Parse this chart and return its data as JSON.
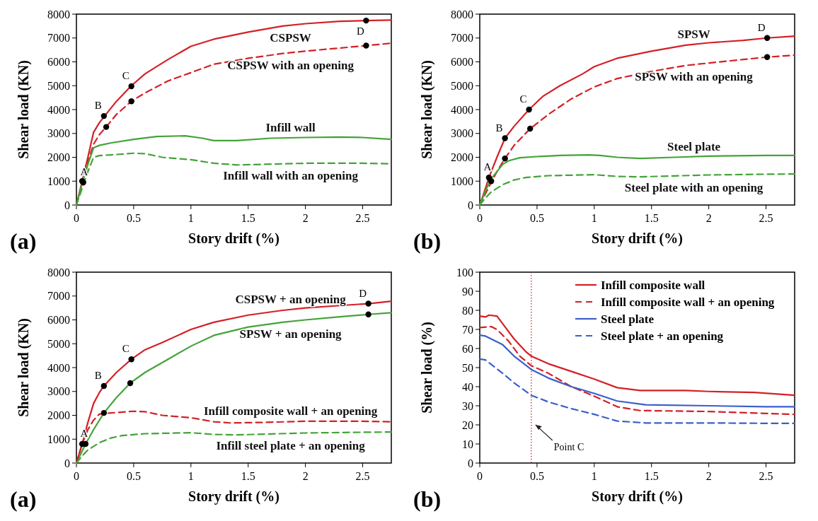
{
  "chart_data": [
    {
      "type": "line",
      "xlabel": "Story drift (%)",
      "ylabel": "Shear load (KN)",
      "xlim": [
        0,
        2.75
      ],
      "ylim": [
        0,
        8000
      ],
      "xticks": [
        0,
        0.5,
        1,
        1.5,
        2,
        2.5
      ],
      "yticks": [
        0,
        1000,
        2000,
        3000,
        4000,
        5000,
        6000,
        7000,
        8000
      ],
      "annotations": [
        "(a)",
        {
          "text": "A",
          "x": 0.06,
          "y": 950
        },
        {
          "text": "B",
          "x": 0.24,
          "y": 3730
        },
        {
          "text": "C",
          "x": 0.48,
          "y": 4980
        },
        {
          "text": "D",
          "x": 2.53,
          "y": 7730
        }
      ],
      "series": [
        {
          "name": "CSPSW",
          "color": "#d42027",
          "line_style": "solid",
          "x": [
            0,
            0.05,
            0.1,
            0.15,
            0.2,
            0.25,
            0.35,
            0.48,
            0.6,
            0.8,
            1.0,
            1.2,
            1.5,
            1.8,
            2.0,
            2.3,
            2.53,
            2.75
          ],
          "values": [
            0,
            1000,
            2000,
            3050,
            3450,
            3750,
            4350,
            5000,
            5500,
            6100,
            6650,
            6950,
            7250,
            7500,
            7600,
            7700,
            7730,
            7750
          ]
        },
        {
          "name": "CSPSW with an opening",
          "color": "#d42027",
          "line_style": "dashed",
          "x": [
            0,
            0.05,
            0.1,
            0.15,
            0.2,
            0.26,
            0.35,
            0.48,
            0.6,
            0.8,
            1.0,
            1.2,
            1.5,
            1.8,
            2.0,
            2.3,
            2.53,
            2.75
          ],
          "values": [
            0,
            900,
            1800,
            2550,
            2950,
            3270,
            3800,
            4350,
            4700,
            5200,
            5550,
            5900,
            6150,
            6350,
            6450,
            6580,
            6680,
            6780
          ]
        },
        {
          "name": "Infill wall",
          "color": "#44a33a",
          "line_style": "solid",
          "x": [
            0,
            0.05,
            0.1,
            0.15,
            0.2,
            0.3,
            0.5,
            0.7,
            0.95,
            1.1,
            1.2,
            1.4,
            1.7,
            2.0,
            2.3,
            2.5,
            2.75
          ],
          "values": [
            0,
            900,
            1700,
            2400,
            2500,
            2600,
            2750,
            2870,
            2900,
            2800,
            2700,
            2700,
            2800,
            2830,
            2850,
            2830,
            2750
          ]
        },
        {
          "name": "Infill wall with an opening",
          "color": "#44a33a",
          "line_style": "dashed",
          "x": [
            0,
            0.05,
            0.1,
            0.15,
            0.2,
            0.3,
            0.5,
            0.6,
            0.75,
            1.0,
            1.2,
            1.4,
            1.6,
            2.0,
            2.5,
            2.75
          ],
          "values": [
            0,
            700,
            1400,
            2000,
            2070,
            2100,
            2170,
            2150,
            2000,
            1900,
            1750,
            1680,
            1700,
            1750,
            1750,
            1730
          ]
        },
        {
          "type": "scatter",
          "color": "#000000",
          "marker": "circle",
          "x": [
            0.05,
            0.06,
            0.24,
            0.26,
            0.48,
            0.48,
            2.53,
            2.53
          ],
          "values": [
            1000,
            950,
            3730,
            3270,
            4980,
            4350,
            7730,
            6680
          ]
        }
      ]
    },
    {
      "type": "line",
      "xlabel": "Story drift (%)",
      "ylabel": "Shear load (KN)",
      "xlim": [
        0,
        2.75
      ],
      "ylim": [
        0,
        8000
      ],
      "xticks": [
        0,
        0.5,
        1,
        1.5,
        2,
        2.5
      ],
      "yticks": [
        0,
        1000,
        2000,
        3000,
        4000,
        5000,
        6000,
        7000,
        8000
      ],
      "annotations": [
        "(b)",
        {
          "text": "A",
          "x": 0.08,
          "y": 1150
        },
        {
          "text": "B",
          "x": 0.22,
          "y": 2800
        },
        {
          "text": "C",
          "x": 0.43,
          "y": 4000
        },
        {
          "text": "D",
          "x": 2.51,
          "y": 7000
        }
      ],
      "series": [
        {
          "name": "SPSW",
          "color": "#d42027",
          "line_style": "solid",
          "x": [
            0,
            0.05,
            0.08,
            0.15,
            0.22,
            0.3,
            0.43,
            0.55,
            0.7,
            0.9,
            1.0,
            1.2,
            1.5,
            1.8,
            2.0,
            2.3,
            2.51,
            2.75
          ],
          "values": [
            0,
            700,
            1150,
            2000,
            2800,
            3300,
            4000,
            4550,
            5000,
            5500,
            5800,
            6150,
            6450,
            6700,
            6800,
            6900,
            7000,
            7080
          ]
        },
        {
          "name": "SPSW with an opening",
          "color": "#d42027",
          "line_style": "dashed",
          "x": [
            0,
            0.1,
            0.15,
            0.22,
            0.3,
            0.44,
            0.6,
            0.8,
            1.0,
            1.2,
            1.5,
            1.8,
            2.0,
            2.3,
            2.51,
            2.75
          ],
          "values": [
            0,
            950,
            1400,
            1950,
            2500,
            3200,
            3800,
            4450,
            4950,
            5300,
            5600,
            5850,
            5950,
            6100,
            6200,
            6280
          ]
        },
        {
          "name": "Steel plate",
          "color": "#44a33a",
          "line_style": "solid",
          "x": [
            0,
            0.05,
            0.1,
            0.2,
            0.25,
            0.35,
            0.5,
            0.7,
            0.95,
            1.05,
            1.2,
            1.4,
            1.7,
            2.0,
            2.5,
            2.75
          ],
          "values": [
            0,
            600,
            1100,
            1700,
            1850,
            1980,
            2030,
            2080,
            2100,
            2080,
            2000,
            1950,
            2000,
            2050,
            2080,
            2080
          ]
        },
        {
          "name": "Steel plate with an opening",
          "color": "#44a33a",
          "line_style": "dashed",
          "x": [
            0,
            0.05,
            0.1,
            0.2,
            0.3,
            0.4,
            0.6,
            1.0,
            1.2,
            1.4,
            1.7,
            2.0,
            2.5,
            2.75
          ],
          "values": [
            0,
            300,
            550,
            850,
            1050,
            1150,
            1230,
            1270,
            1200,
            1180,
            1220,
            1260,
            1290,
            1300
          ]
        },
        {
          "type": "scatter",
          "color": "#000000",
          "marker": "circle",
          "x": [
            0.08,
            0.1,
            0.22,
            0.22,
            0.43,
            0.44,
            2.51,
            2.51
          ],
          "values": [
            1150,
            1000,
            2800,
            1950,
            4000,
            3200,
            7000,
            6200
          ]
        }
      ]
    },
    {
      "type": "line",
      "xlabel": "Story drift (%)",
      "ylabel": "Shear load (KN)",
      "xlim": [
        0,
        2.75
      ],
      "ylim": [
        0,
        8000
      ],
      "xticks": [
        0,
        0.5,
        1,
        1.5,
        2,
        2.5
      ],
      "yticks": [
        0,
        1000,
        2000,
        3000,
        4000,
        5000,
        6000,
        7000,
        8000
      ],
      "annotations": [
        "(a)",
        {
          "text": "A",
          "x": 0.05,
          "y": 800
        },
        {
          "text": "B",
          "x": 0.24,
          "y": 3230
        },
        {
          "text": "C",
          "x": 0.48,
          "y": 4350
        },
        {
          "text": "D",
          "x": 2.55,
          "y": 6680
        }
      ],
      "series": [
        {
          "name": "CSPSW + an opening",
          "color": "#d42027",
          "line_style": "solid",
          "x": [
            0,
            0.05,
            0.1,
            0.15,
            0.2,
            0.24,
            0.35,
            0.48,
            0.6,
            0.75,
            1.0,
            1.2,
            1.5,
            1.8,
            2.0,
            2.3,
            2.55,
            2.75
          ],
          "values": [
            0,
            800,
            1700,
            2500,
            2950,
            3230,
            3800,
            4350,
            4750,
            5050,
            5600,
            5900,
            6200,
            6400,
            6500,
            6600,
            6680,
            6780
          ]
        },
        {
          "name": "SPSW + an opening",
          "color": "#44a33a",
          "line_style": "solid",
          "x": [
            0,
            0.08,
            0.15,
            0.24,
            0.35,
            0.47,
            0.6,
            0.8,
            1.0,
            1.2,
            1.5,
            1.8,
            2.0,
            2.3,
            2.55,
            2.75
          ],
          "values": [
            0,
            800,
            1400,
            2100,
            2750,
            3350,
            3800,
            4350,
            4900,
            5350,
            5700,
            5900,
            6000,
            6130,
            6230,
            6300
          ]
        },
        {
          "name": "Infill composite wall + an opening",
          "color": "#d42027",
          "line_style": "dashed",
          "x": [
            0,
            0.05,
            0.1,
            0.15,
            0.2,
            0.3,
            0.5,
            0.6,
            0.75,
            1.0,
            1.2,
            1.35,
            1.6,
            2.0,
            2.5,
            2.75
          ],
          "values": [
            0,
            800,
            1400,
            1800,
            2050,
            2100,
            2170,
            2150,
            2000,
            1900,
            1730,
            1680,
            1700,
            1750,
            1750,
            1730
          ]
        },
        {
          "name": "Infill steel plate + an opening",
          "color": "#44a33a",
          "line_style": "dashed",
          "x": [
            0,
            0.05,
            0.1,
            0.2,
            0.3,
            0.4,
            0.6,
            1.0,
            1.2,
            1.4,
            1.7,
            2.0,
            2.5,
            2.75
          ],
          "values": [
            0,
            300,
            550,
            850,
            1050,
            1150,
            1230,
            1270,
            1200,
            1180,
            1220,
            1260,
            1290,
            1300
          ]
        },
        {
          "type": "scatter",
          "color": "#000000",
          "marker": "circle",
          "x": [
            0.05,
            0.08,
            0.24,
            0.24,
            0.48,
            0.47,
            2.55,
            2.55
          ],
          "values": [
            800,
            800,
            3230,
            2100,
            4350,
            3350,
            6680,
            6230
          ]
        }
      ]
    },
    {
      "type": "line",
      "xlabel": "Story drift (%)",
      "ylabel": "Shear load (%)",
      "xlim": [
        0,
        2.75
      ],
      "ylim": [
        0,
        100
      ],
      "xticks": [
        0,
        0.5,
        1,
        1.5,
        2,
        2.5
      ],
      "yticks": [
        0,
        10,
        20,
        30,
        40,
        50,
        60,
        70,
        80,
        90,
        100
      ],
      "legend": "top right",
      "annotations": [
        "(b)"
      ],
      "ref_lines": [
        {
          "axis": "x",
          "value": 0.45,
          "label": "Point C",
          "color": "#d42027",
          "line_style": "dotted"
        }
      ],
      "series": [
        {
          "name": "Infill composite wall",
          "color": "#d42027",
          "line_style": "solid",
          "x": [
            0,
            0.05,
            0.08,
            0.15,
            0.2,
            0.3,
            0.4,
            0.45,
            0.6,
            0.8,
            1.0,
            1.2,
            1.4,
            1.8,
            2.0,
            2.4,
            2.75
          ],
          "values": [
            77,
            76.5,
            77.5,
            77,
            73,
            65,
            58.5,
            56,
            52,
            48,
            44,
            39.5,
            38,
            38,
            37.5,
            37,
            35.5
          ]
        },
        {
          "name": "Infill composite wall + an opening",
          "color": "#d42027",
          "line_style": "dashed",
          "x": [
            0,
            0.1,
            0.15,
            0.25,
            0.35,
            0.45,
            0.6,
            0.8,
            1.0,
            1.2,
            1.4,
            2.0,
            2.5,
            2.75
          ],
          "values": [
            71,
            71.5,
            70,
            64,
            56,
            51,
            47,
            40,
            35,
            29.5,
            27.5,
            27,
            26,
            25.5
          ]
        },
        {
          "name": "Steel plate",
          "color": "#3b5fc8",
          "line_style": "solid",
          "x": [
            0,
            0.05,
            0.1,
            0.2,
            0.3,
            0.45,
            0.6,
            0.8,
            1.0,
            1.2,
            1.45,
            2.0,
            2.5,
            2.75
          ],
          "values": [
            67,
            66.5,
            65,
            62,
            56,
            49,
            44.5,
            40,
            36.5,
            32.5,
            30.5,
            30,
            29.5,
            29.5
          ]
        },
        {
          "name": "Steel plate + an opening",
          "color": "#3b5fc8",
          "line_style": "dashed",
          "x": [
            0,
            0.05,
            0.2,
            0.3,
            0.45,
            0.6,
            0.8,
            1.0,
            1.2,
            1.45,
            2.0,
            2.5,
            2.75
          ],
          "values": [
            54.5,
            54,
            47,
            42,
            35.5,
            32,
            28.5,
            25.5,
            22,
            21,
            21,
            20.8,
            20.8
          ]
        }
      ]
    }
  ]
}
